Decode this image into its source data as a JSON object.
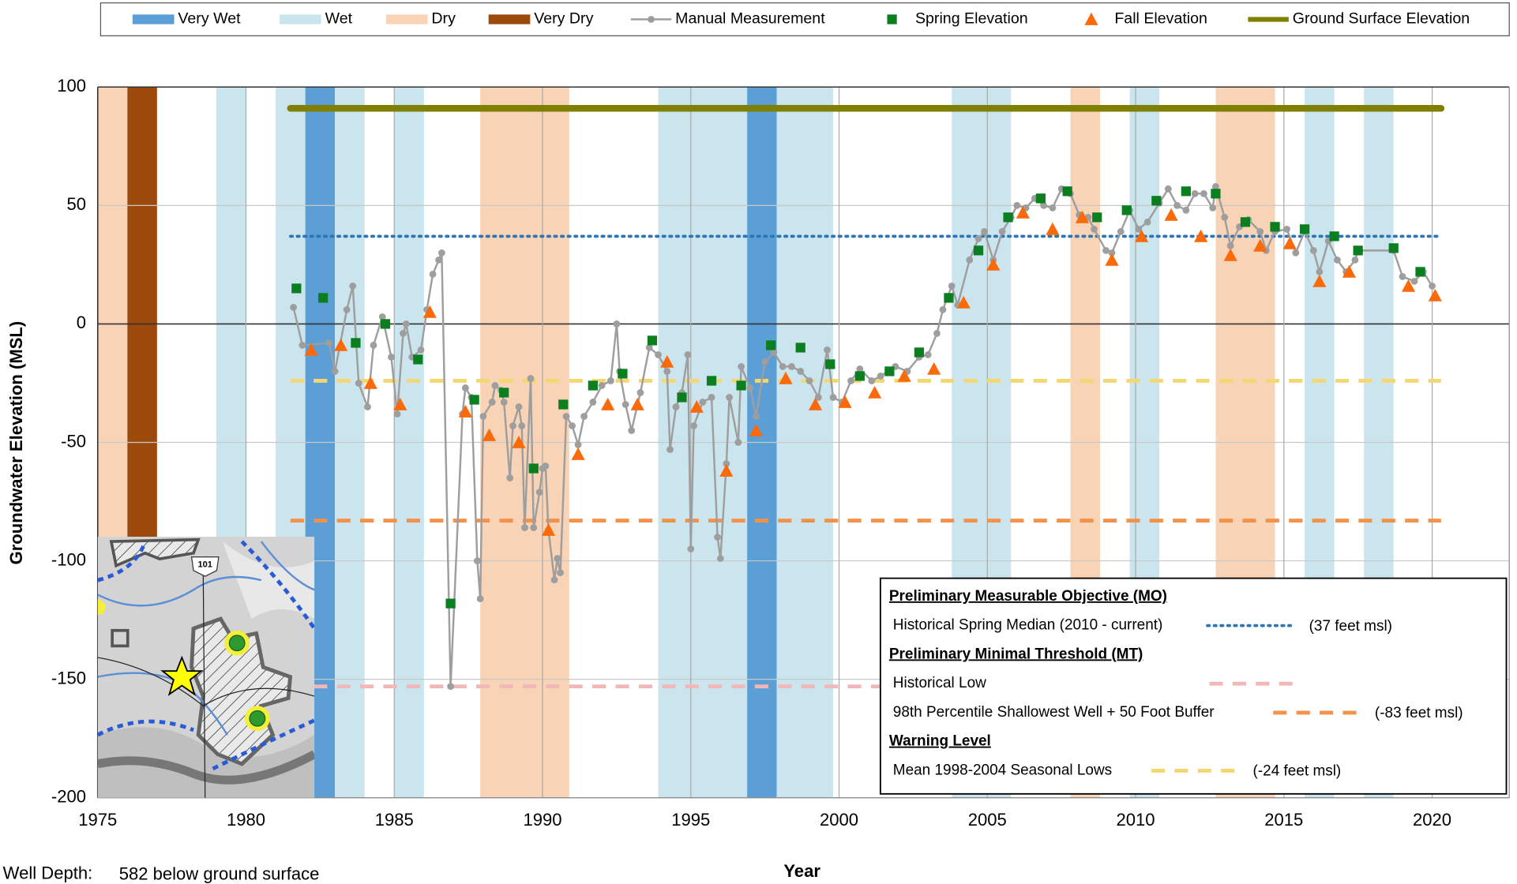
{
  "chart_data": {
    "type": "line",
    "x_label": "Year",
    "y_label": "Groundwater Elevation (MSL)",
    "xlim": [
      1975,
      2022.6
    ],
    "ylim": [
      -200,
      100
    ],
    "xticks": [
      1975,
      1980,
      1985,
      1990,
      1995,
      2000,
      2005,
      2010,
      2015,
      2020
    ],
    "yticks": [
      -200,
      -150,
      -100,
      -50,
      0,
      50,
      100
    ],
    "grid": true,
    "year_types": [
      {
        "name": "Very Wet",
        "color": "#5b9fd6"
      },
      {
        "name": "Wet",
        "color": "#cbe5ee"
      },
      {
        "name": "Dry",
        "color": "#f9d3b6"
      },
      {
        "name": "Very Dry",
        "color": "#9c4a0c"
      }
    ],
    "bands": [
      {
        "kind": "Dry",
        "start": 1975.0,
        "end": 1976.0
      },
      {
        "kind": "Very Dry",
        "start": 1976.0,
        "end": 1977.0
      },
      {
        "kind": "Wet",
        "start": 1979.0,
        "end": 1980.0
      },
      {
        "kind": "Wet",
        "start": 1981.0,
        "end": 1982.0
      },
      {
        "kind": "Very Wet",
        "start": 1982.0,
        "end": 1983.0
      },
      {
        "kind": "Wet",
        "start": 1983.0,
        "end": 1984.0
      },
      {
        "kind": "Wet",
        "start": 1985.0,
        "end": 1986.0
      },
      {
        "kind": "Dry",
        "start": 1987.9,
        "end": 1990.9
      },
      {
        "kind": "Wet",
        "start": 1993.9,
        "end": 1996.9
      },
      {
        "kind": "Very Wet",
        "start": 1996.9,
        "end": 1997.9
      },
      {
        "kind": "Wet",
        "start": 1997.9,
        "end": 1999.8
      },
      {
        "kind": "Wet",
        "start": 2003.8,
        "end": 2005.8
      },
      {
        "kind": "Dry",
        "start": 2007.8,
        "end": 2008.8
      },
      {
        "kind": "Wet",
        "start": 2009.8,
        "end": 2010.8
      },
      {
        "kind": "Dry",
        "start": 2012.7,
        "end": 2014.7
      },
      {
        "kind": "Wet",
        "start": 2015.7,
        "end": 2016.7
      },
      {
        "kind": "Wet",
        "start": 2017.7,
        "end": 2018.7
      }
    ],
    "series": [
      {
        "name": "Manual Measurement",
        "color": "#9e9e9e",
        "marker": "circle",
        "line": true,
        "x": [
          1981.6,
          1981.9,
          1982.8,
          1983.0,
          1983.4,
          1983.6,
          1983.8,
          1984.1,
          1984.3,
          1984.6,
          1984.9,
          1985.1,
          1985.3,
          1985.4,
          1985.6,
          1985.9,
          1986.1,
          1986.3,
          1986.5,
          1986.6,
          1986.9,
          1987.3,
          1987.4,
          1987.6,
          1987.8,
          1987.9,
          1988.0,
          1988.3,
          1988.4,
          1988.6,
          1988.7,
          1988.9,
          1989.0,
          1989.2,
          1989.3,
          1989.4,
          1989.6,
          1989.7,
          1989.9,
          1990.0,
          1990.1,
          1990.2,
          1990.4,
          1990.5,
          1990.6,
          1990.8,
          1991.0,
          1991.2,
          1991.4,
          1991.7,
          1992.0,
          1992.3,
          1992.5,
          1992.6,
          1992.8,
          1993.0,
          1993.3,
          1993.6,
          1993.9,
          1994.2,
          1994.3,
          1994.5,
          1994.7,
          1994.9,
          1995.0,
          1995.1,
          1995.4,
          1995.7,
          1995.9,
          1996.0,
          1996.2,
          1996.3,
          1996.6,
          1996.7,
          1997.0,
          1997.2,
          1997.5,
          1997.8,
          1998.1,
          1998.4,
          1998.7,
          1999.0,
          1999.3,
          1999.6,
          1999.8,
          2000.1,
          2000.4,
          2000.7,
          2001.1,
          2001.4,
          2001.9,
          2002.3,
          2002.7,
          2003.0,
          2003.3,
          2003.5,
          2003.8,
          2004.0,
          2004.4,
          2004.7,
          2004.9,
          2005.2,
          2005.5,
          2005.8,
          2006.0,
          2006.3,
          2006.6,
          2006.9,
          2007.2,
          2007.5,
          2007.8,
          2008.1,
          2008.4,
          2008.6,
          2009.0,
          2009.2,
          2009.5,
          2009.8,
          2010.1,
          2010.4,
          2010.8,
          2011.1,
          2011.4,
          2011.7,
          2012.0,
          2012.3,
          2012.6,
          2012.7,
          2013.0,
          2013.2,
          2013.5,
          2013.8,
          2014.2,
          2014.4,
          2014.7,
          2015.1,
          2015.4,
          2015.7,
          2016.0,
          2016.2,
          2016.5,
          2016.8,
          2017.1,
          2017.4,
          2017.5,
          2018.7,
          2019.0,
          2019.4,
          2019.7,
          2020.0
        ],
        "values": [
          7,
          -9,
          -8,
          -20,
          6,
          16,
          -25,
          -35,
          -9,
          3,
          -14,
          -38,
          -4,
          0,
          -14,
          -11,
          6,
          21,
          27,
          30,
          -153,
          -38,
          -27,
          -31,
          -100,
          -116,
          -39,
          -33,
          -26,
          -28,
          -33,
          -65,
          -43,
          -35,
          -43,
          -86,
          -23,
          -86,
          -71,
          -61,
          -60,
          -87,
          -108,
          -99,
          -105,
          -39,
          -43,
          -51,
          -39,
          -33,
          -26,
          -24,
          0,
          -20,
          -34,
          -45,
          -29,
          -10,
          -13,
          -20,
          -53,
          -35,
          -29,
          -13,
          -95,
          -43,
          -33,
          -31,
          -90,
          -99,
          -59,
          -31,
          -50,
          -18,
          -27,
          -39,
          -16,
          -12,
          -18,
          -18,
          -20,
          -24,
          -31,
          -11,
          -31,
          -33,
          -24,
          -19,
          -24,
          -22,
          -18,
          -20,
          -14,
          -13,
          -4,
          6,
          16,
          8,
          27,
          36,
          39,
          27,
          39,
          45,
          50,
          49,
          53,
          50,
          49,
          57,
          55,
          46,
          45,
          40,
          31,
          30,
          39,
          48,
          40,
          43,
          51,
          57,
          50,
          48,
          55,
          55,
          49,
          58,
          45,
          33,
          41,
          44,
          39,
          31,
          39,
          40,
          30,
          39,
          31,
          22,
          35,
          27,
          22,
          27,
          31,
          31,
          20,
          18,
          22,
          16
        ]
      },
      {
        "name": "Spring Elevation",
        "color": "#0b7f1f",
        "marker": "square",
        "line": false,
        "x": [
          1981.7,
          1982.6,
          1983.7,
          1984.7,
          1985.8,
          1986.9,
          1987.7,
          1988.7,
          1989.7,
          1990.7,
          1991.7,
          1992.7,
          1993.7,
          1994.7,
          1995.7,
          1996.7,
          1997.7,
          1998.7,
          1999.7,
          2000.7,
          2001.7,
          2002.7,
          2003.7,
          2004.7,
          2005.7,
          2006.8,
          2007.7,
          2008.7,
          2009.7,
          2010.7,
          2011.7,
          2012.7,
          2013.7,
          2014.7,
          2015.7,
          2016.7,
          2017.5,
          2018.7,
          2019.6
        ],
        "values": [
          15,
          11,
          -8,
          0,
          -15,
          -118,
          -32,
          -29,
          -61,
          -34,
          -26,
          -21,
          -7,
          -31,
          -24,
          -26,
          -9,
          -10,
          -17,
          -22,
          -20,
          -12,
          11,
          31,
          45,
          53,
          56,
          45,
          48,
          52,
          56,
          55,
          43,
          41,
          40,
          37,
          31,
          32,
          22
        ]
      },
      {
        "name": "Fall Elevation",
        "color": "#fa6a0a",
        "marker": "triangle",
        "line": false,
        "x": [
          1982.2,
          1983.2,
          1984.2,
          1985.2,
          1986.2,
          1987.4,
          1988.2,
          1989.2,
          1990.2,
          1991.2,
          1992.2,
          1993.2,
          1994.2,
          1995.2,
          1996.2,
          1997.2,
          1998.2,
          1999.2,
          2000.2,
          2001.2,
          2002.2,
          2003.2,
          2004.2,
          2005.2,
          2006.2,
          2007.2,
          2008.2,
          2009.2,
          2010.2,
          2011.2,
          2012.2,
          2013.2,
          2014.2,
          2015.2,
          2016.2,
          2017.2,
          2019.2,
          2020.1
        ],
        "values": [
          -11,
          -9,
          -25,
          -34,
          5,
          -37,
          -47,
          -50,
          -87,
          -55,
          -34,
          -34,
          -16,
          -35,
          -62,
          -45,
          -23,
          -34,
          -33,
          -29,
          -22,
          -19,
          9,
          25,
          47,
          40,
          45,
          27,
          37,
          46,
          37,
          29,
          33,
          34,
          18,
          22,
          16,
          12
        ]
      },
      {
        "name": "Ground Surface Elevation",
        "color": "#808000",
        "marker": "none",
        "line": true,
        "x": [
          1981.5,
          2020.3
        ],
        "values": [
          91,
          91
        ]
      }
    ],
    "reference_x": [
      1981.5,
      2020.3
    ],
    "reference_lines": [
      {
        "section": "Preliminary Measurable Objective (MO)",
        "name": "Historical Spring Median (2010 - current)",
        "value": 37,
        "value_label": "(37 feet msl)",
        "color": "#2e75b6",
        "glow": "#7fd68a",
        "style": "dotted"
      },
      {
        "section": "Preliminary Minimal Threshold (MT)",
        "name": "Historical Low",
        "value": -153,
        "color": "#f2b8b8",
        "style": "dashed"
      },
      {
        "name": "98th Percentile Shallowest Well + 50 Foot Buffer",
        "value": -83,
        "value_label": "(-83 feet msl)",
        "color": "#f4924a",
        "glow": "#f2a0a0",
        "style": "dashed"
      },
      {
        "section": "Warning Level",
        "name": "Mean 1998-2004 Seasonal Lows",
        "value": -24,
        "value_label": "(-24 feet msl)",
        "color": "#f3d872",
        "style": "dashed"
      }
    ]
  },
  "map": {
    "road_label": "101"
  },
  "well_depth": {
    "label": "Well Depth:",
    "value": "582 below ground surface"
  }
}
